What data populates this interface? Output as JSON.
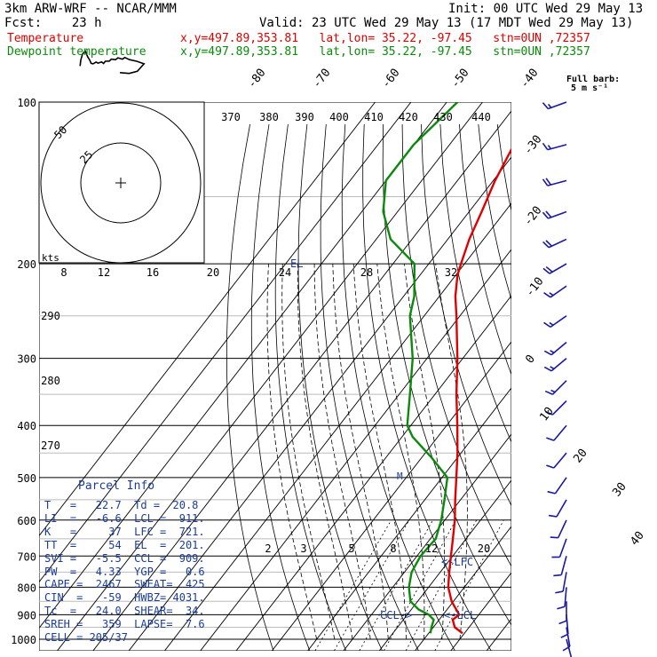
{
  "header": {
    "model": "3km ARW-WRF -- NCAR/MMM",
    "init": "Init: 00 UTC Wed 29 May 13",
    "fcst": "Fcst:    23 h",
    "valid": "Valid: 23 UTC Wed 29 May 13 (17 MDT Wed 29 May 13)",
    "temp_label": "Temperature",
    "temp_loc": "x,y=497.89,353.81   lat,lon= 35.22, -97.45   stn=0UN ,72357",
    "dew_label": "Dewpoint temperature",
    "dew_loc": "x,y=497.89,353.81   lat,lon= 35.22, -97.45   stn=0UN ,72357"
  },
  "barb_legend": {
    "line1": "Full barb:",
    "line2": "5 m s⁻¹"
  },
  "hodograph": {
    "unit": "kts",
    "ring_labels": [
      "25",
      "50"
    ]
  },
  "annotations": {
    "el": "EL",
    "m": "M",
    "lfc": "<-LFC",
    "lcl": "<-LCL",
    "ccl": "CCL->"
  },
  "parcel_info": {
    "title": "Parcel Info",
    "rows": [
      "T   =   22.7  Td =  20.8",
      "LI  =   -6.6  LCL =  911.",
      "K   =     37  LFC =  721.",
      "TT  =     54  EL  =  201.",
      "SVI =   -5.5  CCL =  909.",
      "PW  =   4.33  YGP =   0.6",
      "CAPE =  2467  SWEAT=  425",
      "CIN  =   -59  HWBZ= 4031.",
      "Tc  =   24.0  SHEAR=  34.",
      "SREH =   359  LAPSE=  7.6",
      "CELL = 205/37"
    ]
  },
  "colors": {
    "temperature": "#e00000",
    "dewpoint": "#0a8a0a",
    "info": "#1a3d9a"
  },
  "chart_data": {
    "type": "line",
    "subtype": "skew-T log-p",
    "y_scale": "log",
    "y_axis": {
      "label": "pressure (hPa)",
      "ticks": [
        100,
        200,
        300,
        400,
        500,
        600,
        700,
        800,
        900,
        1000
      ],
      "range": [
        1000,
        100
      ]
    },
    "isotherm_labels": [
      "-80",
      "-70",
      "-60",
      "-50",
      "-40",
      "-30",
      "-20",
      "-10",
      "0",
      "10",
      "20",
      "30",
      "40"
    ],
    "theta_e_labels": [
      "370",
      "380",
      "390",
      "400",
      "410",
      "420",
      "430",
      "440"
    ],
    "theta_labels": [
      "290",
      "280",
      "270"
    ],
    "mixing_ratio_labels": [
      "2",
      "3",
      "5",
      "8",
      "12",
      "20"
    ],
    "hodo_speed_labels": [
      "8",
      "12",
      "16",
      "20",
      "24",
      "28",
      "32"
    ],
    "series": [
      {
        "name": "Temperature",
        "p": [
          975,
          950,
          920,
          900,
          850,
          800,
          750,
          700,
          650,
          600,
          550,
          500,
          450,
          400,
          350,
          300,
          250,
          230,
          210,
          200,
          180,
          160,
          140,
          120,
          100
        ],
        "t": [
          29.5,
          26.0,
          23.8,
          24.5,
          19.5,
          15.5,
          12.5,
          9.5,
          6.3,
          2.8,
          -1.5,
          -6.0,
          -11.0,
          -17.0,
          -24.0,
          -31.5,
          -41.0,
          -45.5,
          -49.5,
          -51.0,
          -54.0,
          -56.5,
          -59.5,
          -62.0,
          -65.0
        ]
      },
      {
        "name": "Dewpoint temperature",
        "p": [
          975,
          950,
          920,
          900,
          880,
          850,
          800,
          750,
          700,
          650,
          600,
          550,
          500,
          460,
          420,
          400,
          350,
          300,
          250,
          230,
          200,
          180,
          160,
          140,
          120,
          100
        ],
        "t": [
          20.5,
          19.5,
          18.5,
          16.0,
          12.0,
          8.0,
          4.5,
          2.0,
          1.0,
          1.5,
          -1.0,
          -4.5,
          -8.5,
          -17.0,
          -27.0,
          -31.0,
          -37.0,
          -44.0,
          -54.0,
          -57.0,
          -64.0,
          -76.0,
          -84.0,
          -90.0,
          -90.0,
          -87.0
        ]
      }
    ],
    "wind_profile": [
      {
        "p": 100,
        "dir": 250,
        "spd": 13
      },
      {
        "p": 120,
        "dir": 255,
        "spd": 16
      },
      {
        "p": 140,
        "dir": 255,
        "spd": 19
      },
      {
        "p": 160,
        "dir": 250,
        "spd": 22
      },
      {
        "p": 180,
        "dir": 245,
        "spd": 20
      },
      {
        "p": 200,
        "dir": 240,
        "spd": 18
      },
      {
        "p": 220,
        "dir": 235,
        "spd": 17
      },
      {
        "p": 250,
        "dir": 235,
        "spd": 16
      },
      {
        "p": 280,
        "dir": 230,
        "spd": 15
      },
      {
        "p": 300,
        "dir": 230,
        "spd": 14
      },
      {
        "p": 330,
        "dir": 225,
        "spd": 13
      },
      {
        "p": 360,
        "dir": 225,
        "spd": 12
      },
      {
        "p": 400,
        "dir": 220,
        "spd": 11
      },
      {
        "p": 450,
        "dir": 220,
        "spd": 10
      },
      {
        "p": 500,
        "dir": 215,
        "spd": 10
      },
      {
        "p": 550,
        "dir": 210,
        "spd": 9
      },
      {
        "p": 600,
        "dir": 205,
        "spd": 9
      },
      {
        "p": 650,
        "dir": 200,
        "spd": 8
      },
      {
        "p": 700,
        "dir": 195,
        "spd": 8
      },
      {
        "p": 750,
        "dir": 190,
        "spd": 9
      },
      {
        "p": 800,
        "dir": 185,
        "spd": 10
      },
      {
        "p": 850,
        "dir": 180,
        "spd": 12
      },
      {
        "p": 900,
        "dir": 175,
        "spd": 11
      },
      {
        "p": 950,
        "dir": 170,
        "spd": 9
      },
      {
        "p": 1000,
        "dir": 165,
        "spd": 7
      }
    ]
  }
}
